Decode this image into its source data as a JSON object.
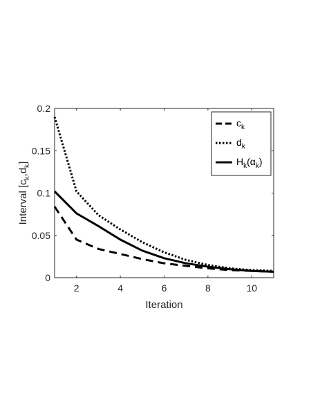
{
  "chart_data": {
    "type": "line",
    "title": "",
    "xlabel": "Iteration",
    "ylabel": "Interval [c",
    "ylabel_sub1": "k",
    "ylabel_mid": ",d",
    "ylabel_sub2": "k",
    "ylabel_end": "]",
    "xlim": [
      1,
      11
    ],
    "ylim": [
      0,
      0.2
    ],
    "xticks": [
      2,
      4,
      6,
      8,
      10
    ],
    "yticks": [
      0,
      0.05,
      0.1,
      0.15,
      0.2
    ],
    "ytick_labels": [
      "0",
      "0.05",
      "0.1",
      "0.15",
      "0.2"
    ],
    "grid": false,
    "legend_position": "top-right",
    "x": [
      1,
      2,
      3,
      4,
      5,
      6,
      7,
      8,
      9,
      10,
      11
    ],
    "series": [
      {
        "name": "c",
        "name_sub": "k",
        "style": "dashed",
        "values": [
          0.084,
          0.045,
          0.034,
          0.028,
          0.022,
          0.017,
          0.014,
          0.011,
          0.009,
          0.008,
          0.007
        ]
      },
      {
        "name": "d",
        "name_sub": "k",
        "style": "dotted",
        "values": [
          0.19,
          0.102,
          0.074,
          0.057,
          0.042,
          0.03,
          0.021,
          0.015,
          0.011,
          0.009,
          0.008
        ]
      },
      {
        "name": "H",
        "name_sub": "k",
        "name_rest": "(α",
        "name_rest_sub": "k",
        "name_end": ")",
        "style": "solid",
        "values": [
          0.102,
          0.076,
          0.061,
          0.045,
          0.032,
          0.023,
          0.017,
          0.013,
          0.01,
          0.008,
          0.007
        ]
      }
    ],
    "line_color": "#000000"
  }
}
